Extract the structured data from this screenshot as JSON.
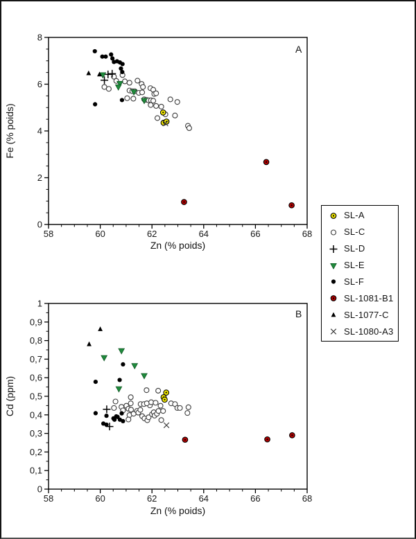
{
  "figure": {
    "background": "#ffffff",
    "border_color": "#141414"
  },
  "markers": {
    "SL-A": {
      "type": "circle-dot",
      "fill": "#f2e800",
      "stroke": "#000000"
    },
    "SL-C": {
      "type": "circle-open",
      "fill": "#ffffff",
      "stroke": "#3c3c3c"
    },
    "SL-D": {
      "type": "plus",
      "fill": "none",
      "stroke": "#000000"
    },
    "SL-E": {
      "type": "triangle-down",
      "fill": "#1f8b3c",
      "stroke": "#0b4f1e"
    },
    "SL-F": {
      "type": "circle-filled",
      "fill": "#000000",
      "stroke": "#000000"
    },
    "SL-1081-B1": {
      "type": "circle-dot",
      "fill": "#b40000",
      "stroke": "#000000"
    },
    "SL-1077-C": {
      "type": "triangle-up",
      "fill": "#000000",
      "stroke": "#000000"
    },
    "SL-1080-A3": {
      "type": "x",
      "fill": "none",
      "stroke": "#3c3c3c"
    }
  },
  "legend": {
    "items": [
      "SL-A",
      "SL-C",
      "SL-D",
      "SL-E",
      "SL-F",
      "SL-1081-B1",
      "SL-1077-C",
      "SL-1080-A3"
    ]
  },
  "chart_data": [
    {
      "type": "scatter",
      "panel_label": "A",
      "xlabel": "Zn (% poids)",
      "ylabel": "Fe (% poids)",
      "xlim": [
        58,
        68
      ],
      "ylim": [
        0,
        8
      ],
      "grid": false,
      "xticks": {
        "values": [
          58,
          60,
          62,
          64,
          66,
          68
        ],
        "labels": [
          "58",
          "60",
          "62",
          "64",
          "66",
          "68"
        ],
        "minor_step": 0.5
      },
      "yticks": {
        "values": [
          0,
          2,
          4,
          6,
          8
        ],
        "labels": [
          "0",
          "2",
          "4",
          "6",
          "8"
        ],
        "minor_step": 0.5
      },
      "series": [
        {
          "name": "SL-C",
          "points": [
            [
              60.16,
              5.88
            ],
            [
              60.33,
              5.8
            ],
            [
              60.53,
              6.32
            ],
            [
              60.62,
              6.14
            ],
            [
              60.86,
              6.39
            ],
            [
              60.95,
              6.12
            ],
            [
              61.13,
              6.06
            ],
            [
              61.44,
              6.15
            ],
            [
              61.6,
              6.01
            ],
            [
              61.65,
              5.88
            ],
            [
              61.13,
              5.73
            ],
            [
              61.24,
              5.7
            ],
            [
              61.33,
              5.7
            ],
            [
              61.49,
              5.63
            ],
            [
              61.62,
              5.65
            ],
            [
              61.94,
              5.83
            ],
            [
              62.05,
              5.76
            ],
            [
              62.09,
              5.58
            ],
            [
              62.16,
              5.61
            ],
            [
              61.04,
              5.4
            ],
            [
              61.28,
              5.38
            ],
            [
              61.7,
              5.35
            ],
            [
              61.78,
              5.33
            ],
            [
              61.87,
              5.31
            ],
            [
              61.96,
              5.31
            ],
            [
              62.05,
              5.29
            ],
            [
              61.95,
              5.11
            ],
            [
              62.16,
              5.07
            ],
            [
              62.71,
              5.35
            ],
            [
              62.98,
              5.24
            ],
            [
              62.36,
              5.04
            ],
            [
              62.52,
              4.71
            ],
            [
              62.21,
              4.55
            ],
            [
              62.89,
              4.66
            ],
            [
              63.39,
              4.22
            ],
            [
              63.44,
              4.12
            ]
          ]
        },
        {
          "name": "SL-F",
          "points": [
            [
              59.79,
              7.41
            ],
            [
              60.08,
              7.18
            ],
            [
              60.21,
              7.18
            ],
            [
              60.42,
              7.27
            ],
            [
              60.47,
              7.1
            ],
            [
              60.53,
              6.95
            ],
            [
              60.65,
              6.98
            ],
            [
              60.76,
              6.93
            ],
            [
              60.86,
              6.86
            ],
            [
              60.8,
              6.67
            ],
            [
              60.85,
              6.52
            ],
            [
              59.8,
              5.14
            ],
            [
              60.84,
              5.32
            ]
          ]
        },
        {
          "name": "SL-D",
          "points": [
            [
              60.3,
              6.42
            ],
            [
              60.46,
              6.45
            ],
            [
              60.16,
              6.17
            ]
          ]
        },
        {
          "name": "SL-E",
          "points": [
            [
              60.1,
              6.4
            ],
            [
              60.76,
              6.03
            ],
            [
              60.7,
              5.88
            ],
            [
              61.3,
              5.67
            ],
            [
              61.7,
              5.3
            ]
          ]
        },
        {
          "name": "SL-1077-C",
          "points": [
            [
              59.55,
              6.47
            ],
            [
              59.97,
              6.42
            ]
          ]
        },
        {
          "name": "SL-A",
          "points": [
            [
              62.43,
              4.79
            ],
            [
              62.45,
              4.35
            ],
            [
              62.56,
              4.4
            ]
          ]
        },
        {
          "name": "SL-1080-A3",
          "points": [
            [
              62.52,
              4.32
            ]
          ]
        },
        {
          "name": "SL-1081-B1",
          "points": [
            [
              63.24,
              0.96
            ],
            [
              66.42,
              2.67
            ],
            [
              67.4,
              0.82
            ]
          ]
        }
      ]
    },
    {
      "type": "scatter",
      "panel_label": "B",
      "xlabel": "Zn (% poids)",
      "ylabel": "Cd (ppm)",
      "xlim": [
        58,
        68
      ],
      "ylim": [
        0,
        1
      ],
      "grid": false,
      "xticks": {
        "values": [
          58,
          60,
          62,
          64,
          66,
          68
        ],
        "labels": [
          "58",
          "60",
          "62",
          "64",
          "66",
          "68"
        ],
        "minor_step": 0.5
      },
      "yticks": {
        "values": [
          0,
          0.1,
          0.2,
          0.3,
          0.4,
          0.5,
          0.6,
          0.7,
          0.8,
          0.9,
          1
        ],
        "labels": [
          "0",
          "0,1",
          "0,2",
          "0,3",
          "0,4",
          "0,5",
          "0,6",
          "0,7",
          "0,8",
          "0,9",
          "1"
        ],
        "minor_step": 0.05
      },
      "series": [
        {
          "name": "SL-C",
          "points": [
            [
              60.59,
              0.472
            ],
            [
              60.53,
              0.437
            ],
            [
              60.82,
              0.443
            ],
            [
              60.88,
              0.424
            ],
            [
              61.01,
              0.449
            ],
            [
              61.09,
              0.433
            ],
            [
              61.18,
              0.462
            ],
            [
              61.19,
              0.428
            ],
            [
              61.13,
              0.399
            ],
            [
              61.09,
              0.375
            ],
            [
              61.29,
              0.406
            ],
            [
              61.42,
              0.421
            ],
            [
              61.47,
              0.412
            ],
            [
              61.55,
              0.427
            ],
            [
              61.56,
              0.458
            ],
            [
              61.69,
              0.458
            ],
            [
              61.62,
              0.393
            ],
            [
              61.71,
              0.381
            ],
            [
              61.82,
              0.371
            ],
            [
              61.87,
              0.387
            ],
            [
              62.0,
              0.403
            ],
            [
              62.07,
              0.414
            ],
            [
              62.1,
              0.396
            ],
            [
              62.19,
              0.406
            ],
            [
              62.25,
              0.421
            ],
            [
              61.92,
              0.451
            ],
            [
              61.8,
              0.462
            ],
            [
              61.97,
              0.468
            ],
            [
              62.14,
              0.465
            ],
            [
              61.18,
              0.495
            ],
            [
              61.79,
              0.533
            ],
            [
              62.24,
              0.53
            ],
            [
              62.33,
              0.449
            ],
            [
              62.43,
              0.421
            ],
            [
              62.74,
              0.462
            ],
            [
              62.89,
              0.458
            ],
            [
              62.98,
              0.437
            ],
            [
              63.08,
              0.437
            ],
            [
              63.41,
              0.441
            ],
            [
              63.37,
              0.41
            ],
            [
              62.36,
              0.372
            ]
          ]
        },
        {
          "name": "SL-F",
          "points": [
            [
              59.82,
              0.578
            ],
            [
              60.88,
              0.672
            ],
            [
              60.75,
              0.588
            ],
            [
              59.82,
              0.409
            ],
            [
              60.24,
              0.395
            ],
            [
              60.12,
              0.353
            ],
            [
              60.24,
              0.347
            ],
            [
              60.51,
              0.381
            ],
            [
              60.55,
              0.374
            ],
            [
              60.62,
              0.392
            ],
            [
              60.67,
              0.389
            ],
            [
              60.76,
              0.374
            ],
            [
              60.83,
              0.408
            ],
            [
              60.88,
              0.366
            ]
          ]
        },
        {
          "name": "SL-D",
          "points": [
            [
              60.25,
              0.43
            ],
            [
              60.36,
              0.337
            ]
          ]
        },
        {
          "name": "SL-E",
          "points": [
            [
              60.15,
              0.708
            ],
            [
              60.82,
              0.745
            ],
            [
              61.33,
              0.665
            ],
            [
              61.7,
              0.611
            ],
            [
              60.72,
              0.54
            ]
          ]
        },
        {
          "name": "SL-1077-C",
          "points": [
            [
              59.57,
              0.781
            ],
            [
              60.0,
              0.862
            ]
          ]
        },
        {
          "name": "SL-A",
          "points": [
            [
              62.55,
              0.52
            ],
            [
              62.45,
              0.495
            ],
            [
              62.49,
              0.482
            ]
          ]
        },
        {
          "name": "SL-1080-A3",
          "points": [
            [
              62.56,
              0.344
            ]
          ]
        },
        {
          "name": "SL-1081-B1",
          "points": [
            [
              63.28,
              0.266
            ],
            [
              66.46,
              0.268
            ],
            [
              67.42,
              0.29
            ]
          ]
        }
      ]
    }
  ]
}
